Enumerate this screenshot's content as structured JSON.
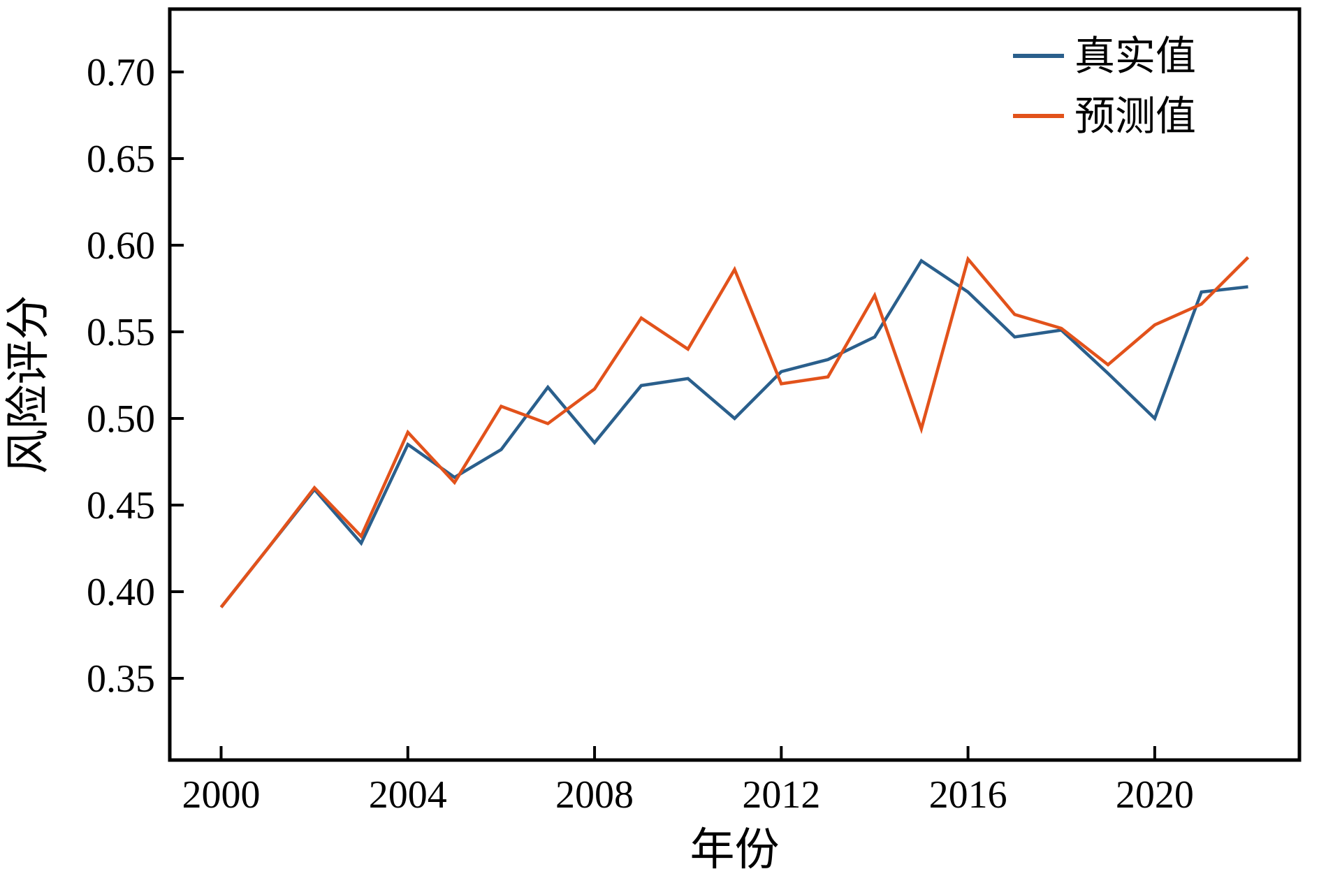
{
  "chart_data": {
    "type": "line",
    "title": "",
    "xlabel": "年份",
    "ylabel": "风险评分",
    "x": [
      2000,
      2001,
      2002,
      2003,
      2004,
      2005,
      2006,
      2007,
      2008,
      2009,
      2010,
      2011,
      2012,
      2013,
      2014,
      2015,
      2016,
      2017,
      2018,
      2019,
      2020,
      2021,
      2022
    ],
    "series": [
      {
        "name": "真实值",
        "color": "#2a5f8c",
        "values": [
          0.391,
          0.425,
          0.459,
          0.428,
          0.485,
          0.466,
          0.482,
          0.518,
          0.486,
          0.519,
          0.523,
          0.5,
          0.527,
          0.534,
          0.547,
          0.591,
          0.573,
          0.547,
          0.551,
          0.526,
          0.5,
          0.573,
          0.576
        ]
      },
      {
        "name": "预测值",
        "color": "#e2521b",
        "values": [
          0.391,
          0.425,
          0.46,
          0.432,
          0.492,
          0.463,
          0.507,
          0.497,
          0.517,
          0.558,
          0.54,
          0.586,
          0.52,
          0.524,
          0.571,
          0.494,
          0.592,
          0.56,
          0.552,
          0.531,
          0.554,
          0.566,
          0.593
        ]
      }
    ],
    "xticks": [
      2000,
      2004,
      2008,
      2012,
      2016,
      2020
    ],
    "yticks": [
      0.35,
      0.4,
      0.45,
      0.5,
      0.55,
      0.6,
      0.65,
      0.7
    ],
    "ytick_labels": [
      "0.35",
      "0.40",
      "0.45",
      "0.50",
      "0.55",
      "0.60",
      "0.65",
      "0.70"
    ],
    "xlim": [
      1998.9,
      2023.1
    ],
    "ylim": [
      0.3028,
      0.7363
    ],
    "grid": false,
    "legend_position": "upper right",
    "axis_color": "#000000",
    "background_color": "#ffffff"
  }
}
